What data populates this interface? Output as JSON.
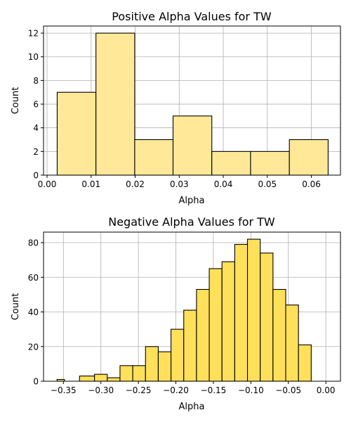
{
  "chart_data": [
    {
      "type": "bar",
      "title": "Positive Alpha Values for TW",
      "xlabel": "Alpha",
      "ylabel": "Count",
      "xlim": [
        -0.0008,
        0.0666
      ],
      "ylim": [
        0,
        12.6
      ],
      "grid": true,
      "bar_color": "#FFE999",
      "edge_color": "#000000",
      "grid_color": "#b0b0b0",
      "bins": [
        {
          "x0": 0.0023,
          "x1": 0.0111,
          "value": 7
        },
        {
          "x0": 0.0111,
          "x1": 0.0199,
          "value": 12
        },
        {
          "x0": 0.0199,
          "x1": 0.0286,
          "value": 3
        },
        {
          "x0": 0.0286,
          "x1": 0.0374,
          "value": 5
        },
        {
          "x0": 0.0374,
          "x1": 0.0462,
          "value": 2
        },
        {
          "x0": 0.0462,
          "x1": 0.055,
          "value": 2
        },
        {
          "x0": 0.055,
          "x1": 0.0638,
          "value": 3
        }
      ],
      "x_ticks": [
        {
          "value": 0.0,
          "label": "0.00"
        },
        {
          "value": 0.01,
          "label": "0.01"
        },
        {
          "value": 0.02,
          "label": "0.02"
        },
        {
          "value": 0.03,
          "label": "0.03"
        },
        {
          "value": 0.04,
          "label": "0.04"
        },
        {
          "value": 0.05,
          "label": "0.05"
        },
        {
          "value": 0.06,
          "label": "0.06"
        }
      ],
      "y_ticks": [
        {
          "value": 0,
          "label": "0"
        },
        {
          "value": 2,
          "label": "2"
        },
        {
          "value": 4,
          "label": "4"
        },
        {
          "value": 6,
          "label": "6"
        },
        {
          "value": 8,
          "label": "8"
        },
        {
          "value": 10,
          "label": "10"
        },
        {
          "value": 12,
          "label": "12"
        }
      ]
    },
    {
      "type": "bar",
      "title": "Negative Alpha Values for TW",
      "xlabel": "Alpha",
      "ylabel": "Count",
      "xlim": [
        -0.3765,
        0.0195
      ],
      "ylim": [
        0,
        86.1
      ],
      "grid": true,
      "bar_color": "#FFE05A",
      "edge_color": "#000000",
      "grid_color": "#b0b0b0",
      "bins": [
        {
          "x0": -0.3585,
          "x1": -0.3485,
          "value": 1
        },
        {
          "x0": -0.3385,
          "x1": -0.3285,
          "value": 0
        },
        {
          "x0": -0.3285,
          "x1": -0.3085,
          "value": 3
        },
        {
          "x0": -0.3085,
          "x1": -0.2915,
          "value": 4
        },
        {
          "x0": -0.2915,
          "x1": -0.2745,
          "value": 2
        },
        {
          "x0": -0.2745,
          "x1": -0.2575,
          "value": 9
        },
        {
          "x0": -0.2575,
          "x1": -0.2405,
          "value": 9
        },
        {
          "x0": -0.2405,
          "x1": -0.2235,
          "value": 20
        },
        {
          "x0": -0.2235,
          "x1": -0.2065,
          "value": 17
        },
        {
          "x0": -0.2065,
          "x1": -0.1895,
          "value": 30
        },
        {
          "x0": -0.1895,
          "x1": -0.1725,
          "value": 41
        },
        {
          "x0": -0.1725,
          "x1": -0.1555,
          "value": 53
        },
        {
          "x0": -0.1555,
          "x1": -0.1385,
          "value": 65
        },
        {
          "x0": -0.1385,
          "x1": -0.1215,
          "value": 69
        },
        {
          "x0": -0.1215,
          "x1": -0.1045,
          "value": 79
        },
        {
          "x0": -0.1045,
          "x1": -0.0875,
          "value": 82
        },
        {
          "x0": -0.0875,
          "x1": -0.0705,
          "value": 74
        },
        {
          "x0": -0.0705,
          "x1": -0.0535,
          "value": 53
        },
        {
          "x0": -0.0535,
          "x1": -0.0365,
          "value": 44
        },
        {
          "x0": -0.0365,
          "x1": -0.0195,
          "value": 21
        }
      ],
      "x_ticks": [
        {
          "value": -0.35,
          "label": "−0.35"
        },
        {
          "value": -0.3,
          "label": "−0.30"
        },
        {
          "value": -0.25,
          "label": "−0.25"
        },
        {
          "value": -0.2,
          "label": "−0.20"
        },
        {
          "value": -0.15,
          "label": "−0.15"
        },
        {
          "value": -0.1,
          "label": "−0.10"
        },
        {
          "value": -0.05,
          "label": "−0.05"
        },
        {
          "value": 0.0,
          "label": "0.00"
        }
      ],
      "y_ticks": [
        {
          "value": 0,
          "label": "0"
        },
        {
          "value": 20,
          "label": "20"
        },
        {
          "value": 40,
          "label": "40"
        },
        {
          "value": 60,
          "label": "60"
        },
        {
          "value": 80,
          "label": "80"
        }
      ]
    }
  ]
}
